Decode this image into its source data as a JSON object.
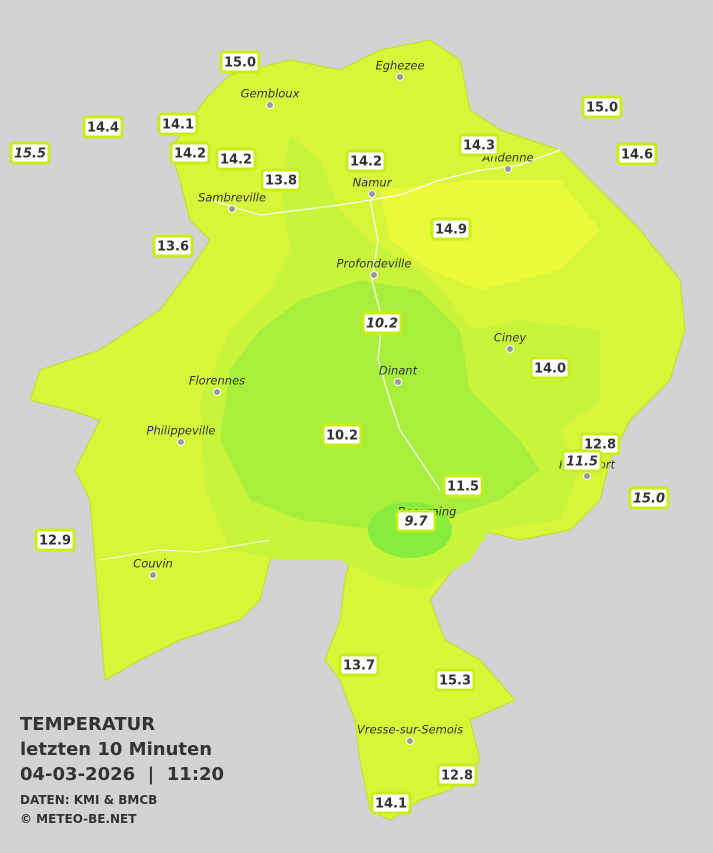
{
  "title": {
    "line1": "TEMPERATUR",
    "line2": "letzten 10 Minuten",
    "line3": "04-03-2026  |  11:20"
  },
  "credits": [
    "DATEN: KMI & BMCB",
    "© METEO-BE.NET"
  ],
  "places": [
    "Eghezee",
    "Gembloux",
    "Andenne",
    "Namur",
    "Sambreville",
    "Profondeville",
    "Ciney",
    "Dinant",
    "Florennes",
    "Philippeville",
    "Rochefort",
    "Beauraing",
    "Couvin",
    "Vresse-sur-Semois"
  ],
  "stations": [
    "15.0",
    "14.4",
    "14.1",
    "15.5",
    "14.2",
    "14.2",
    "13.8",
    "14.2",
    "14.3",
    "15.0",
    "14.6",
    "14.9",
    "13.6",
    "10.2",
    "14.0",
    "10.2",
    "12.8",
    "11.5",
    "11.5",
    "15.0",
    "9.7",
    "12.9",
    "13.7",
    "15.3",
    "12.8",
    "14.1"
  ]
}
